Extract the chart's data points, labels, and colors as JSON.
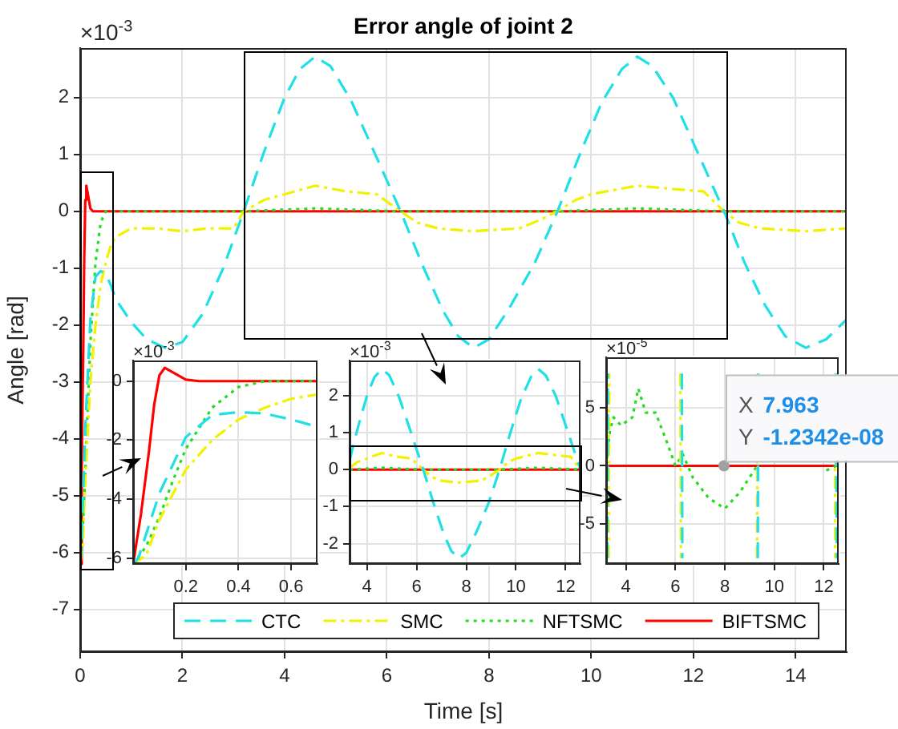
{
  "chart_data": [
    {
      "type": "line",
      "title": "Error angle of joint 2",
      "xlabel": "Time [s]",
      "ylabel": "Angle [rad]",
      "annotations": [
        "×10$^{-3}$"
      ],
      "xlim": [
        0,
        15
      ],
      "ylim": [
        -7.75,
        2.87
      ],
      "xticks": [
        0,
        2,
        4,
        6,
        8,
        10,
        12,
        14
      ],
      "yticks": [
        -7,
        -6,
        -5,
        -4,
        -3,
        -2,
        -1,
        0,
        1,
        2
      ],
      "grid": true,
      "legend": "bottom",
      "marker": "none",
      "series": [
        {
          "name": "CTC",
          "color": "#1fe0e6",
          "line_style": "dashed",
          "x": [
            0,
            0.02,
            0.1,
            0.2,
            0.3,
            0.4,
            0.5,
            0.6,
            0.7,
            1.0,
            1.3,
            1.66,
            2.0,
            2.4,
            2.8,
            3.2,
            3.6,
            4.0,
            4.3,
            4.6,
            4.9,
            5.3,
            5.8,
            6.27,
            6.7,
            7.1,
            7.4,
            7.7,
            8.0,
            8.4,
            8.9,
            9.34,
            9.8,
            10.2,
            10.6,
            10.9,
            11.2,
            11.6,
            12.1,
            12.6,
            13.0,
            13.4,
            13.8,
            14.2,
            14.6,
            15
          ],
          "values": [
            -6.2,
            -6,
            -3.8,
            -1.9,
            -1.15,
            -1.05,
            -1.1,
            -1.3,
            -1.55,
            -1.95,
            -2.25,
            -2.4,
            -2.3,
            -1.8,
            -1.0,
            0,
            1.05,
            2.0,
            2.5,
            2.72,
            2.55,
            1.95,
            0.95,
            0,
            -0.95,
            -1.75,
            -2.2,
            -2.4,
            -2.25,
            -1.7,
            -0.9,
            0,
            1.05,
            1.9,
            2.5,
            2.72,
            2.55,
            2.0,
            1.0,
            0,
            -0.9,
            -1.65,
            -2.2,
            -2.4,
            -2.25,
            -1.9
          ]
        },
        {
          "name": "SMC",
          "color": "#f2f200",
          "line_style": "dashdot",
          "x": [
            0,
            0.05,
            0.1,
            0.2,
            0.3,
            0.4,
            0.5,
            0.6,
            0.7,
            1.0,
            1.5,
            2.0,
            2.5,
            3.0,
            3.2,
            3.6,
            4.0,
            4.6,
            5.2,
            5.8,
            6.27,
            6.6,
            7.0,
            7.7,
            8.6,
            9.0,
            9.34,
            9.7,
            10.0,
            10.9,
            11.5,
            12.2,
            12.6,
            12.9,
            13.3,
            14.2,
            15
          ],
          "values": [
            -6.2,
            -5.9,
            -4.7,
            -3.0,
            -2.0,
            -1.3,
            -0.9,
            -0.6,
            -0.45,
            -0.3,
            -0.3,
            -0.35,
            -0.3,
            -0.3,
            0,
            0.2,
            0.3,
            0.45,
            0.35,
            0.3,
            0,
            -0.2,
            -0.3,
            -0.35,
            -0.3,
            -0.15,
            0,
            0.2,
            0.3,
            0.45,
            0.4,
            0.35,
            0,
            -0.2,
            -0.3,
            -0.35,
            -0.3
          ]
        },
        {
          "name": "NFTSMC",
          "color": "#22dd22",
          "line_style": "dotted",
          "x": [
            0,
            0.05,
            0.1,
            0.15,
            0.2,
            0.3,
            0.4,
            0.5,
            0.7,
            3.2,
            4.6,
            6.27,
            9.34,
            10.9,
            12.6,
            15
          ],
          "values": [
            -6.2,
            -5.6,
            -4.6,
            -3.4,
            -2.3,
            -0.9,
            -0.2,
            0,
            0,
            0,
            0.05,
            0,
            0,
            0.05,
            0,
            0
          ]
        },
        {
          "name": "BIFTSMC",
          "color": "#ff0000",
          "line_style": "solid",
          "x": [
            0,
            0.03,
            0.06,
            0.08,
            0.1,
            0.12,
            0.15,
            0.2,
            0.25,
            0.4,
            15
          ],
          "values": [
            -6.2,
            -4.5,
            -2.4,
            -0.8,
            0.2,
            0.45,
            0.3,
            0.05,
            0,
            0,
            0
          ]
        }
      ]
    },
    {
      "type": "line",
      "annotations": [
        "×10$^{-3}$"
      ],
      "xlim": [
        0,
        0.7
      ],
      "ylim": [
        -6.2,
        0.7
      ],
      "xticks": [
        0.2,
        0.4,
        0.6
      ],
      "yticks": [
        -6,
        -4,
        -2,
        0
      ],
      "grid": true,
      "marker": "none",
      "series": [
        {
          "color": "#1fe0e6",
          "line_style": "dashed",
          "x": [
            0,
            0.02,
            0.1,
            0.2,
            0.3,
            0.4,
            0.5,
            0.6,
            0.7
          ],
          "values": [
            -6.2,
            -6,
            -3.8,
            -1.9,
            -1.15,
            -1.05,
            -1.1,
            -1.3,
            -1.55
          ]
        },
        {
          "color": "#f2f200",
          "line_style": "dashdot",
          "x": [
            0,
            0.05,
            0.1,
            0.2,
            0.3,
            0.4,
            0.5,
            0.6,
            0.7
          ],
          "values": [
            -6.2,
            -5.9,
            -4.7,
            -3.0,
            -2.0,
            -1.3,
            -0.9,
            -0.6,
            -0.45
          ]
        },
        {
          "color": "#22dd22",
          "line_style": "dotted",
          "x": [
            0,
            0.05,
            0.1,
            0.15,
            0.2,
            0.3,
            0.4,
            0.5,
            0.7
          ],
          "values": [
            -6.2,
            -5.6,
            -4.6,
            -3.4,
            -2.3,
            -0.9,
            -0.2,
            0,
            0
          ]
        },
        {
          "color": "#ff0000",
          "line_style": "solid",
          "x": [
            0,
            0.03,
            0.06,
            0.08,
            0.1,
            0.12,
            0.15,
            0.2,
            0.25,
            0.4,
            0.7
          ],
          "values": [
            -6.2,
            -4.5,
            -2.4,
            -0.8,
            0.2,
            0.45,
            0.3,
            0.05,
            0,
            0,
            0
          ]
        }
      ]
    },
    {
      "type": "line",
      "annotations": [
        "×10$^{-3}$"
      ],
      "xlim": [
        3.3,
        12.6
      ],
      "ylim": [
        -2.55,
        2.95
      ],
      "xticks": [
        4,
        6,
        8,
        10,
        12
      ],
      "yticks": [
        -2,
        -1,
        0,
        1,
        2
      ],
      "grid": true,
      "marker": "none",
      "series": [
        {
          "color": "#1fe0e6",
          "line_style": "dashed",
          "x": [
            3.3,
            3.6,
            4.0,
            4.3,
            4.6,
            4.9,
            5.3,
            5.8,
            6.27,
            6.7,
            7.1,
            7.4,
            7.7,
            8.0,
            8.4,
            8.9,
            9.34,
            9.8,
            10.2,
            10.6,
            10.9,
            11.2,
            11.6,
            12.1,
            12.6
          ],
          "values": [
            0.25,
            1.05,
            2.0,
            2.5,
            2.72,
            2.55,
            1.95,
            0.95,
            0,
            -0.95,
            -1.75,
            -2.2,
            -2.4,
            -2.25,
            -1.7,
            -0.9,
            0,
            1.05,
            1.9,
            2.5,
            2.72,
            2.55,
            2.0,
            1.0,
            0
          ]
        },
        {
          "color": "#f2f200",
          "line_style": "dashdot",
          "x": [
            3.3,
            3.6,
            4.0,
            4.6,
            5.2,
            5.8,
            6.27,
            6.6,
            7.0,
            7.7,
            8.6,
            9.0,
            9.34,
            9.7,
            10.0,
            10.9,
            11.5,
            12.2,
            12.6
          ],
          "values": [
            0.05,
            0.2,
            0.3,
            0.45,
            0.35,
            0.3,
            0,
            -0.2,
            -0.3,
            -0.35,
            -0.3,
            -0.15,
            0,
            0.2,
            0.3,
            0.45,
            0.4,
            0.35,
            0
          ]
        },
        {
          "color": "#22dd22",
          "line_style": "dotted",
          "x": [
            3.3,
            4.6,
            6.27,
            9.34,
            10.9,
            12.6
          ],
          "values": [
            0,
            0.05,
            0,
            0,
            0.05,
            0
          ]
        },
        {
          "color": "#ff0000",
          "line_style": "solid",
          "x": [
            3.3,
            12.6
          ],
          "values": [
            0,
            0
          ]
        }
      ]
    },
    {
      "type": "line",
      "annotations": [
        "×10$^{-5}$",
        {
          "text": "X 7.963\nY -1.2342e-08",
          "x": 7.963,
          "y": 0
        }
      ],
      "xlim": [
        3.2,
        12.6
      ],
      "ylim": [
        -8.5,
        9.4
      ],
      "xticks": [
        4,
        6,
        8,
        10,
        12
      ],
      "yticks": [
        -5,
        0,
        5
      ],
      "grid": true,
      "marker": "none",
      "series": [
        {
          "color": "#1fe0e6",
          "line_style": "dashed",
          "x": [
            3.25,
            3.27,
            4,
            6.26,
            6.28,
            8,
            9.33,
            9.35,
            11,
            12.5,
            12.52
          ],
          "values": [
            -8,
            8,
            null,
            8,
            -8,
            null,
            -8,
            8,
            null,
            8,
            -8
          ]
        },
        {
          "color": "#f2f200",
          "line_style": "dashdot",
          "x": [
            3.3,
            3.32,
            4,
            6.2,
            6.22,
            8,
            9.3,
            9.32,
            11,
            12.44,
            12.46
          ],
          "values": [
            -8,
            8,
            null,
            8,
            -8,
            null,
            -8,
            8,
            null,
            8,
            -8
          ]
        },
        {
          "color": "#22dd22",
          "line_style": "dotted",
          "x": [
            3.2,
            3.35,
            3.5,
            3.8,
            4.26,
            4.5,
            4.8,
            5.2,
            5.7,
            6.0,
            6.3,
            6.7,
            7.35,
            8.0,
            8.6,
            9.0,
            9.3,
            9.6,
            10.3,
            10.8,
            11.5,
            12.1,
            12.5
          ],
          "values": [
            0,
            3,
            4.2,
            3.5,
            4.2,
            6.7,
            4.6,
            4.6,
            1.8,
            0,
            1,
            -1,
            -2.8,
            -3.7,
            -2.3,
            -1,
            0,
            null,
            null,
            null,
            null,
            -0.4,
            0
          ]
        },
        {
          "color": "#ff0000",
          "line_style": "solid",
          "x": [
            3.2,
            12.6
          ],
          "values": [
            0,
            0
          ]
        }
      ]
    }
  ]
}
